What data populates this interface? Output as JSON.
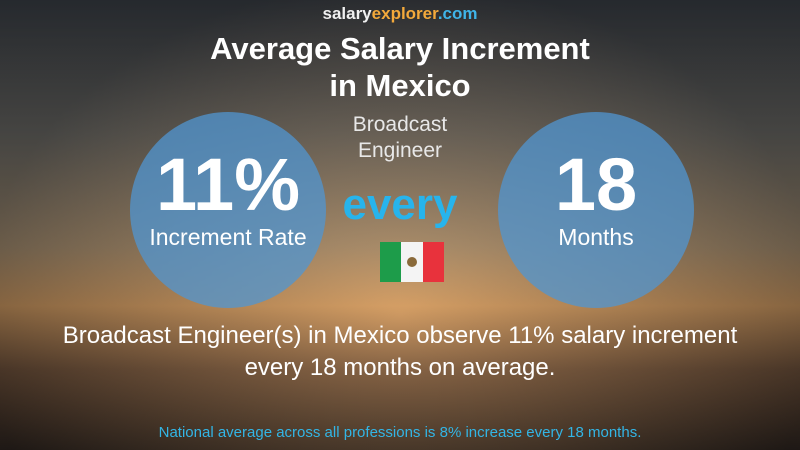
{
  "header": {
    "brand": [
      "salary",
      "explorer",
      ".com"
    ],
    "title": [
      "Average Salary Increment",
      "in Mexico"
    ],
    "job": [
      "Broadcast",
      "Engineer"
    ]
  },
  "left_circle": {
    "value": "11%",
    "label": "Increment Rate"
  },
  "middle": {
    "word": "every"
  },
  "right_circle": {
    "value": "18",
    "label": "Months"
  },
  "summary": [
    "Broadcast Engineer(s) in Mexico observe 11% salary increment",
    "every 18 months on average."
  ],
  "footer": "National average across all professions is 8% increase every 18 months."
}
